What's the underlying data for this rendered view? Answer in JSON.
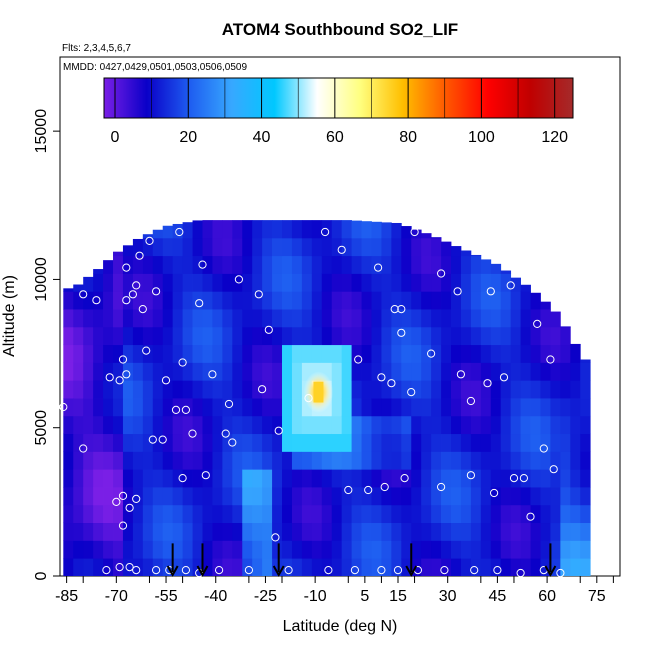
{
  "chart_data": {
    "type": "heatmap",
    "title": "ATOM4 Southbound SO2_LIF",
    "flights_label": "Flts: 2,3,4,5,6,7",
    "dates_label": "MMDD: 0427,0429,0501,0503,0506,0509",
    "xlabel": "Latitude (deg N)",
    "ylabel": "Altitude (m)",
    "xlim": [
      -87,
      82
    ],
    "ylim": [
      0,
      17500
    ],
    "x_ticks": [
      -85,
      -70,
      -55,
      -40,
      -25,
      -10,
      5,
      15,
      30,
      45,
      60,
      75
    ],
    "y_ticks": [
      0,
      5000,
      10000,
      15000
    ],
    "colorbar": {
      "range": [
        -3,
        125
      ],
      "ticks": [
        0,
        20,
        40,
        60,
        80,
        100,
        120
      ],
      "colors": [
        "#7a1fe6",
        "#0a00c8",
        "#1e5cf0",
        "#37a8ff",
        "#00c8ff",
        "#ffffff",
        "#ffff80",
        "#ffbf00",
        "#ff5a00",
        "#ff0000",
        "#c00000",
        "#a52a2a"
      ]
    },
    "background_value": 12,
    "hotspot": {
      "lat": -9,
      "alt": 6200,
      "value": 75,
      "halo_value": 45
    },
    "arrow_latitudes": [
      -53,
      -44,
      -21,
      19,
      61
    ],
    "observation_points": [
      [
        -86,
        5700
      ],
      [
        -80,
        9500
      ],
      [
        -76,
        9300
      ],
      [
        -80,
        4300
      ],
      [
        -72,
        6700
      ],
      [
        -69,
        6600
      ],
      [
        -67,
        6800
      ],
      [
        -68,
        7300
      ],
      [
        -70,
        2500
      ],
      [
        -68,
        2700
      ],
      [
        -66,
        2300
      ],
      [
        -64,
        2600
      ],
      [
        -68,
        1700
      ],
      [
        -67,
        9300
      ],
      [
        -65,
        9500
      ],
      [
        -64,
        9800
      ],
      [
        -62,
        9000
      ],
      [
        -61,
        7600
      ],
      [
        -58,
        9600
      ],
      [
        -59,
        4600
      ],
      [
        -56,
        4600
      ],
      [
        -55,
        6600
      ],
      [
        -52,
        5600
      ],
      [
        -50,
        7200
      ],
      [
        -49,
        5600
      ],
      [
        -47,
        4800
      ],
      [
        -50,
        3300
      ],
      [
        -45,
        9200
      ],
      [
        -44,
        10500
      ],
      [
        -43,
        3400
      ],
      [
        -41,
        6800
      ],
      [
        -36,
        5800
      ],
      [
        -37,
        4800
      ],
      [
        -35,
        4500
      ],
      [
        -33,
        10000
      ],
      [
        -27,
        9500
      ],
      [
        -26,
        6300
      ],
      [
        -24,
        8300
      ],
      [
        -21,
        4900
      ],
      [
        -22,
        1300
      ],
      [
        -12,
        6000
      ],
      [
        -7,
        11600
      ],
      [
        -2,
        11000
      ],
      [
        0,
        2900
      ],
      [
        3,
        7300
      ],
      [
        6,
        2900
      ],
      [
        9,
        10400
      ],
      [
        10,
        6700
      ],
      [
        11,
        3000
      ],
      [
        13,
        6500
      ],
      [
        14,
        9000
      ],
      [
        16,
        9000
      ],
      [
        16,
        8200
      ],
      [
        17,
        3300
      ],
      [
        19,
        6200
      ],
      [
        20,
        11600
      ],
      [
        25,
        7500
      ],
      [
        28,
        10200
      ],
      [
        28,
        3000
      ],
      [
        33,
        9600
      ],
      [
        34,
        6800
      ],
      [
        37,
        3400
      ],
      [
        37,
        5900
      ],
      [
        42,
        6500
      ],
      [
        43,
        9600
      ],
      [
        44,
        2800
      ],
      [
        47,
        6700
      ],
      [
        49,
        9800
      ],
      [
        50,
        3300
      ],
      [
        53,
        3300
      ],
      [
        55,
        2000
      ],
      [
        57,
        8500
      ],
      [
        59,
        4300
      ],
      [
        61,
        7300
      ],
      [
        62,
        3600
      ],
      [
        -60,
        11300
      ],
      [
        -51,
        11600
      ],
      [
        -63,
        10800
      ],
      [
        -67,
        10400
      ],
      [
        -73,
        200
      ],
      [
        -69,
        300
      ],
      [
        -66,
        300
      ],
      [
        -64,
        200
      ],
      [
        -58,
        200
      ],
      [
        -54,
        200
      ],
      [
        -49,
        200
      ],
      [
        -45,
        100
      ],
      [
        -39,
        200
      ],
      [
        -30,
        200
      ],
      [
        -18,
        200
      ],
      [
        -6,
        200
      ],
      [
        2,
        200
      ],
      [
        10,
        200
      ],
      [
        15,
        200
      ],
      [
        21,
        200
      ],
      [
        29,
        200
      ],
      [
        38,
        200
      ],
      [
        45,
        200
      ],
      [
        52,
        100
      ],
      [
        59,
        200
      ],
      [
        64,
        100
      ]
    ]
  }
}
